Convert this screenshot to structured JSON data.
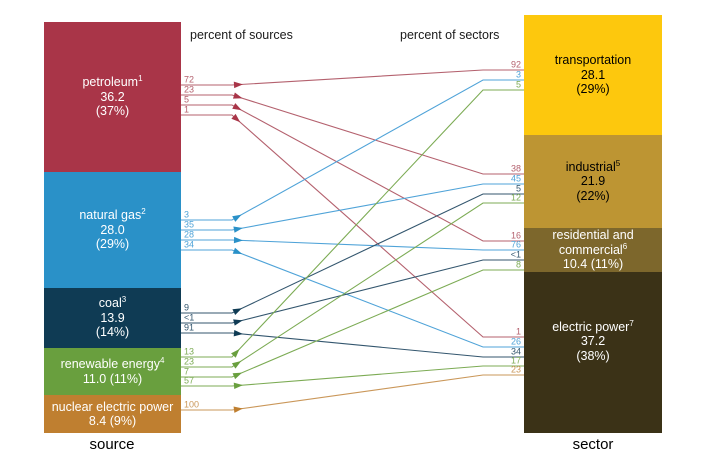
{
  "chart_data": {
    "type": "sankey",
    "left_header": "percent of sources",
    "right_header": "percent of sectors",
    "left_axis_label": "source",
    "right_axis_label": "sector",
    "sources": [
      {
        "id": "petroleum",
        "rows": [
          {
            "t": "petroleum",
            "sup": "1"
          },
          {
            "t": "36.2"
          },
          {
            "t": "(37%)"
          }
        ],
        "value": 36.2,
        "share_pct": 37,
        "box_color": "#a93548",
        "line_color": "#b4616e",
        "text_color": "#ffffff"
      },
      {
        "id": "natural-gas",
        "rows": [
          {
            "t": "natural gas",
            "sup": "2"
          },
          {
            "t": "28.0"
          },
          {
            "t": "(29%)"
          }
        ],
        "value": 28.0,
        "share_pct": 29,
        "box_color": "#2a91c8",
        "line_color": "#4fa3d8",
        "text_color": "#ffffff"
      },
      {
        "id": "coal",
        "rows": [
          {
            "t": "coal",
            "sup": "3"
          },
          {
            "t": "13.9"
          },
          {
            "t": "(14%)"
          }
        ],
        "value": 13.9,
        "share_pct": 14,
        "box_color": "#0f3b54",
        "line_color": "#33566e",
        "text_color": "#ffffff"
      },
      {
        "id": "renewable-energy",
        "rows": [
          {
            "t": "renewable energy",
            "sup": "4"
          },
          {
            "t": "11.0 (11%)"
          }
        ],
        "value": 11.0,
        "share_pct": 11,
        "box_color": "#699f3e",
        "line_color": "#7cab54",
        "text_color": "#ffffff"
      },
      {
        "id": "nuclear-electric-power",
        "rows": [
          {
            "t": "nuclear electric power"
          },
          {
            "t": "8.4 (9%)"
          }
        ],
        "value": 8.4,
        "share_pct": 9,
        "box_color": "#bf7f30",
        "line_color": "#ca9759",
        "text_color": "#ffffff"
      }
    ],
    "sectors": [
      {
        "id": "transportation",
        "rows": [
          {
            "t": "transportation"
          },
          {
            "t": "28.1"
          },
          {
            "t": "(29%)"
          }
        ],
        "value": 28.1,
        "share_pct": 29,
        "box_color": "#fdc80d",
        "text_color": "#000000"
      },
      {
        "id": "industrial",
        "rows": [
          {
            "t": "industrial",
            "sup": "5"
          },
          {
            "t": "21.9"
          },
          {
            "t": "(22%)"
          }
        ],
        "value": 21.9,
        "share_pct": 22,
        "box_color": "#bd9533",
        "text_color": "#000000"
      },
      {
        "id": "residential-commercial",
        "rows": [
          {
            "t": "residential and"
          },
          {
            "t": "commercial",
            "sup": "6"
          },
          {
            "t": "10.4 (11%)"
          }
        ],
        "value": 10.4,
        "share_pct": 11,
        "box_color": "#7d672c",
        "text_color": "#ffffff"
      },
      {
        "id": "electric-power",
        "rows": [
          {
            "t": "electric power",
            "sup": "7"
          },
          {
            "t": "37.2"
          },
          {
            "t": "(38%)"
          }
        ],
        "value": 37.2,
        "share_pct": 38,
        "box_color": "#3b3217",
        "text_color": "#ffffff"
      }
    ],
    "flows": [
      {
        "source": "petroleum",
        "target": "transportation",
        "percent_of_source": "72",
        "percent_of_sector": "92"
      },
      {
        "source": "petroleum",
        "target": "industrial",
        "percent_of_source": "23",
        "percent_of_sector": "38"
      },
      {
        "source": "petroleum",
        "target": "residential-commercial",
        "percent_of_source": "5",
        "percent_of_sector": "16"
      },
      {
        "source": "petroleum",
        "target": "electric-power",
        "percent_of_source": "1",
        "percent_of_sector": "1"
      },
      {
        "source": "natural-gas",
        "target": "transportation",
        "percent_of_source": "3",
        "percent_of_sector": "3"
      },
      {
        "source": "natural-gas",
        "target": "industrial",
        "percent_of_source": "35",
        "percent_of_sector": "45"
      },
      {
        "source": "natural-gas",
        "target": "residential-commercial",
        "percent_of_source": "28",
        "percent_of_sector": "76"
      },
      {
        "source": "natural-gas",
        "target": "electric-power",
        "percent_of_source": "34",
        "percent_of_sector": "26"
      },
      {
        "source": "coal",
        "target": "industrial",
        "percent_of_source": "9",
        "percent_of_sector": "5"
      },
      {
        "source": "coal",
        "target": "residential-commercial",
        "percent_of_source": "<1",
        "percent_of_sector": "<1"
      },
      {
        "source": "coal",
        "target": "electric-power",
        "percent_of_source": "91",
        "percent_of_sector": "34"
      },
      {
        "source": "renewable-energy",
        "target": "transportation",
        "percent_of_source": "13",
        "percent_of_sector": "5"
      },
      {
        "source": "renewable-energy",
        "target": "industrial",
        "percent_of_source": "23",
        "percent_of_sector": "12"
      },
      {
        "source": "renewable-energy",
        "target": "residential-commercial",
        "percent_of_source": "7",
        "percent_of_sector": "8"
      },
      {
        "source": "renewable-energy",
        "target": "electric-power",
        "percent_of_source": "57",
        "percent_of_sector": "17"
      },
      {
        "source": "nuclear-electric-power",
        "target": "electric-power",
        "percent_of_source": "100",
        "percent_of_sector": "23"
      }
    ]
  }
}
